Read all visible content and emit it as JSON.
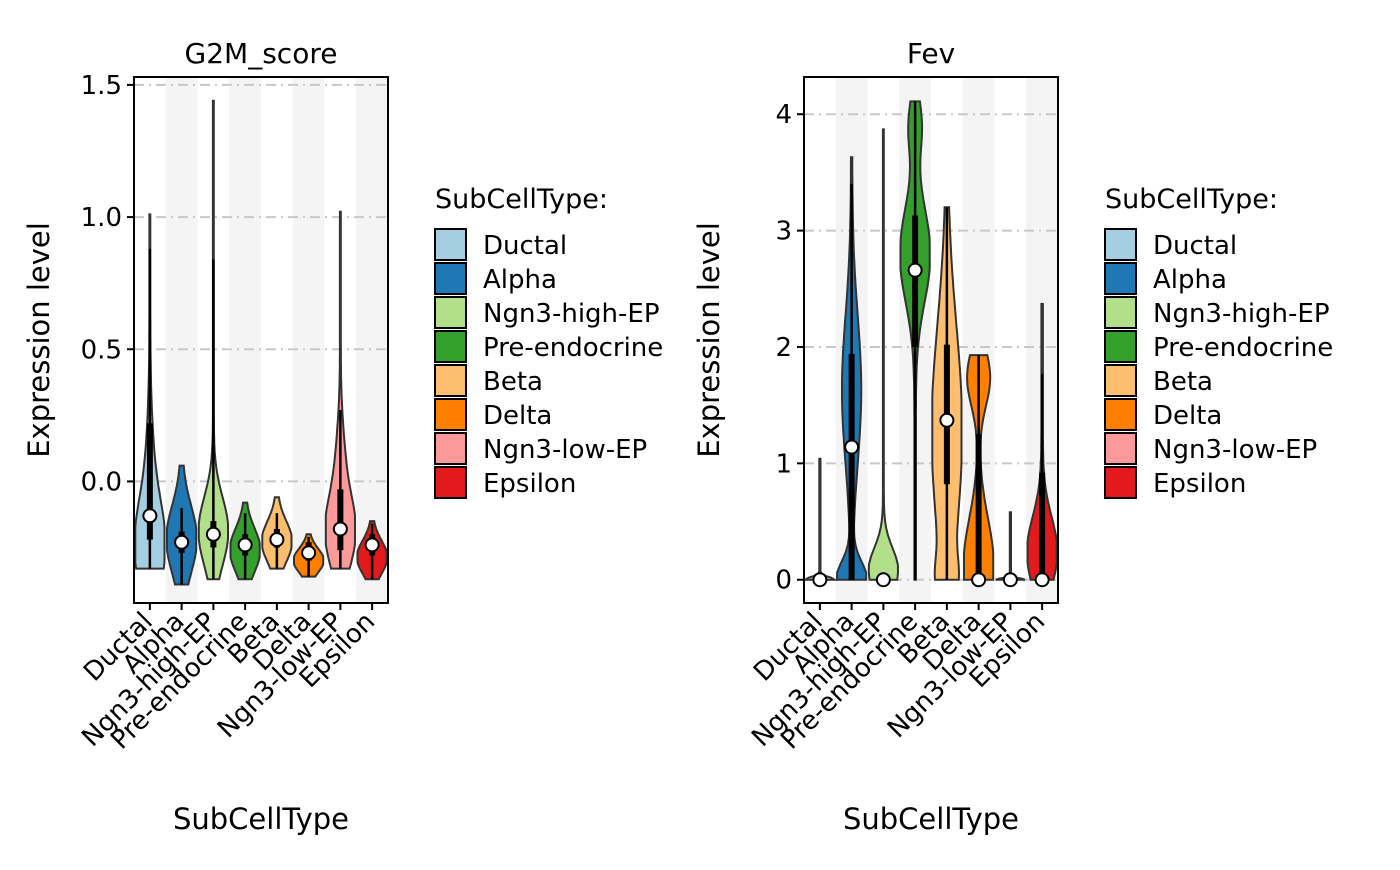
{
  "chart_data": [
    {
      "type": "violin",
      "title": "G2M_score",
      "xlabel": "SubCellType",
      "ylabel": "Expression level",
      "ylim": [
        -0.46,
        1.53
      ],
      "yticks": [
        0.0,
        0.5,
        1.0,
        1.5
      ],
      "ytick_labels": [
        "0.0",
        "0.5",
        "1.0",
        "1.5"
      ],
      "grid": "dashed horizontal at y ticks; alternating light-grey column bands",
      "categories": [
        "Ductal",
        "Alpha",
        "Ngn3-high-EP",
        "Pre-endocrine",
        "Beta",
        "Delta",
        "Ngn3-low-EP",
        "Epsilon"
      ],
      "series": [
        {
          "name": "Ductal",
          "color": "#A6CEE3",
          "min": -0.33,
          "max": 1.01,
          "q1": -0.22,
          "median": -0.13,
          "q3": 0.22,
          "whisker_hi": 0.88
        },
        {
          "name": "Alpha",
          "color": "#1F78B4",
          "min": -0.39,
          "max": 0.06,
          "q1": -0.27,
          "median": -0.23,
          "q3": -0.19,
          "whisker_hi": -0.1
        },
        {
          "name": "Ngn3-high-EP",
          "color": "#B2DF8A",
          "min": -0.37,
          "max": 1.44,
          "q1": -0.25,
          "median": -0.2,
          "q3": -0.15,
          "whisker_hi": 0.84
        },
        {
          "name": "Pre-endocrine",
          "color": "#33A02C",
          "min": -0.37,
          "max": -0.08,
          "q1": -0.28,
          "median": -0.24,
          "q3": -0.2,
          "whisker_hi": -0.12
        },
        {
          "name": "Beta",
          "color": "#FDBF6F",
          "min": -0.33,
          "max": -0.06,
          "q1": -0.25,
          "median": -0.22,
          "q3": -0.18,
          "whisker_hi": -0.12
        },
        {
          "name": "Delta",
          "color": "#FF7F00",
          "min": -0.36,
          "max": -0.2,
          "q1": -0.3,
          "median": -0.27,
          "q3": -0.23,
          "whisker_hi": -0.21
        },
        {
          "name": "Ngn3-low-EP",
          "color": "#FB9A99",
          "min": -0.33,
          "max": 1.02,
          "q1": -0.26,
          "median": -0.18,
          "q3": -0.03,
          "whisker_hi": 0.27
        },
        {
          "name": "Epsilon",
          "color": "#E31A1C",
          "min": -0.37,
          "max": -0.15,
          "q1": -0.28,
          "median": -0.24,
          "q3": -0.2,
          "whisker_hi": -0.16
        }
      ]
    },
    {
      "type": "violin",
      "title": "Fev",
      "xlabel": "SubCellType",
      "ylabel": "Expression level",
      "ylim": [
        -0.2,
        4.32
      ],
      "yticks": [
        0,
        1,
        2,
        3,
        4
      ],
      "ytick_labels": [
        "0",
        "1",
        "2",
        "3",
        "4"
      ],
      "grid": "dashed horizontal at y ticks; alternating light-grey column bands",
      "categories": [
        "Ductal",
        "Alpha",
        "Ngn3-high-EP",
        "Pre-endocrine",
        "Beta",
        "Delta",
        "Ngn3-low-EP",
        "Epsilon"
      ],
      "series": [
        {
          "name": "Ductal",
          "color": "#A6CEE3",
          "min": 0,
          "max": 1.04,
          "q1": 0,
          "median": 0,
          "q3": 0,
          "whisker_hi": 0
        },
        {
          "name": "Alpha",
          "color": "#1F78B4",
          "min": 0,
          "max": 3.63,
          "q1": 0,
          "median": 1.14,
          "q3": 1.94,
          "whisker_hi": 3.4
        },
        {
          "name": "Ngn3-high-EP",
          "color": "#B2DF8A",
          "min": 0,
          "max": 3.87,
          "q1": 0,
          "median": 0,
          "q3": 0,
          "whisker_hi": 0
        },
        {
          "name": "Pre-endocrine",
          "color": "#33A02C",
          "min": 0,
          "max": 4.11,
          "q1": 2.0,
          "median": 2.66,
          "q3": 3.13,
          "whisker_hi": 4.11
        },
        {
          "name": "Beta",
          "color": "#FDBF6F",
          "min": 0,
          "max": 3.2,
          "q1": 0.82,
          "median": 1.37,
          "q3": 2.02,
          "whisker_hi": 3.2
        },
        {
          "name": "Delta",
          "color": "#FF7F00",
          "min": 0,
          "max": 1.93,
          "q1": 0,
          "median": 0,
          "q3": 1.25,
          "whisker_hi": 1.93
        },
        {
          "name": "Ngn3-low-EP",
          "color": "#FB9A99",
          "min": 0,
          "max": 0.58,
          "q1": 0,
          "median": 0,
          "q3": 0,
          "whisker_hi": 0
        },
        {
          "name": "Epsilon",
          "color": "#E31A1C",
          "min": 0,
          "max": 2.37,
          "q1": 0,
          "median": 0,
          "q3": 0.92,
          "whisker_hi": 1.77
        }
      ]
    }
  ],
  "legend": {
    "title": "SubCellType:",
    "placement": "right of each panel",
    "items": [
      {
        "label": "Ductal",
        "color": "#A6CEE3"
      },
      {
        "label": "Alpha",
        "color": "#1F78B4"
      },
      {
        "label": "Ngn3-high-EP",
        "color": "#B2DF8A"
      },
      {
        "label": "Pre-endocrine",
        "color": "#33A02C"
      },
      {
        "label": "Beta",
        "color": "#FDBF6F"
      },
      {
        "label": "Delta",
        "color": "#FF7F00"
      },
      {
        "label": "Ngn3-low-EP",
        "color": "#FB9A99"
      },
      {
        "label": "Epsilon",
        "color": "#E31A1C"
      }
    ]
  }
}
